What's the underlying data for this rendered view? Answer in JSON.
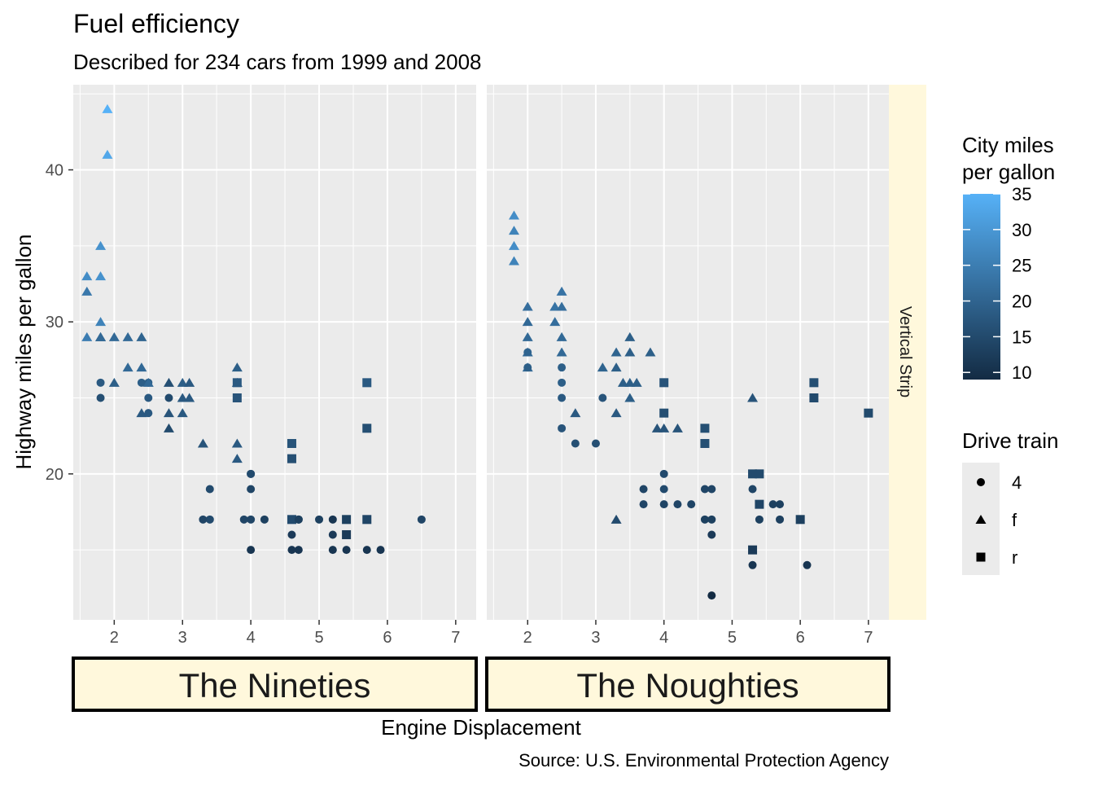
{
  "chart_data": {
    "type": "scatter",
    "title": "Fuel efficiency",
    "subtitle": "Described for 234 cars from 1999 and 2008",
    "xlabel": "Engine Displacement",
    "ylabel": "Highway miles per gallon",
    "caption": "Source: U.S. Environmental Protection Agency",
    "strip_right": "Vertical Strip",
    "xlim": [
      1.4,
      7.3
    ],
    "ylim": [
      10.4,
      45.6
    ],
    "x_ticks": [
      2,
      3,
      4,
      5,
      6,
      7
    ],
    "y_ticks": [
      20,
      30,
      40
    ],
    "grid": true,
    "color_legend": {
      "title_lines": [
        "City miles",
        "per gallon"
      ],
      "range": [
        9,
        35
      ],
      "ticks": [
        10,
        15,
        20,
        25,
        30,
        35
      ],
      "low_color": "#132B43",
      "high_color": "#56B1F7"
    },
    "shape_legend": {
      "title": "Drive train",
      "items": [
        {
          "key": "4",
          "shape": "circle"
        },
        {
          "key": "f",
          "shape": "triangle"
        },
        {
          "key": "r",
          "shape": "square"
        }
      ]
    },
    "panels": [
      {
        "label": "The Nineties",
        "points": [
          [
            1.8,
            29,
            "f",
            18
          ],
          [
            1.8,
            29,
            "f",
            21
          ],
          [
            2.8,
            26,
            "f",
            16
          ],
          [
            1.8,
            26,
            "4",
            18
          ],
          [
            1.8,
            25,
            "4",
            16
          ],
          [
            2.8,
            25,
            "4",
            15
          ],
          [
            3.1,
            25,
            "f",
            18
          ],
          [
            2.8,
            23,
            "f",
            15
          ],
          [
            2.8,
            24,
            "f",
            17
          ],
          [
            4.0,
            20,
            "4",
            15
          ],
          [
            4.0,
            17,
            "4",
            14
          ],
          [
            3.8,
            22,
            "f",
            18
          ],
          [
            3.8,
            21,
            "f",
            18
          ],
          [
            3.8,
            26,
            "f",
            18
          ],
          [
            3.8,
            27,
            "f",
            19
          ],
          [
            1.6,
            33,
            "f",
            28
          ],
          [
            1.6,
            32,
            "f",
            24
          ],
          [
            1.6,
            29,
            "f",
            25
          ],
          [
            1.8,
            33,
            "f",
            29
          ],
          [
            1.8,
            35,
            "f",
            29
          ],
          [
            1.8,
            30,
            "f",
            26
          ],
          [
            1.9,
            44,
            "f",
            35
          ],
          [
            1.9,
            41,
            "f",
            33
          ],
          [
            2.0,
            29,
            "f",
            21
          ],
          [
            2.0,
            26,
            "f",
            19
          ],
          [
            2.2,
            27,
            "f",
            21
          ],
          [
            2.2,
            29,
            "f",
            21
          ],
          [
            2.4,
            27,
            "f",
            21
          ],
          [
            2.4,
            24,
            "f",
            18
          ],
          [
            2.4,
            29,
            "f",
            20
          ],
          [
            2.4,
            26,
            "4",
            19
          ],
          [
            2.5,
            26,
            "4",
            19
          ],
          [
            2.5,
            25,
            "4",
            18
          ],
          [
            2.5,
            24,
            "4",
            18
          ],
          [
            2.5,
            26,
            "f",
            21
          ],
          [
            3.0,
            26,
            "f",
            19
          ],
          [
            3.0,
            25,
            "f",
            18
          ],
          [
            3.0,
            24,
            "f",
            18
          ],
          [
            3.3,
            22,
            "f",
            17
          ],
          [
            3.4,
            19,
            "4",
            15
          ],
          [
            3.4,
            17,
            "4",
            15
          ],
          [
            3.3,
            17,
            "4",
            14
          ],
          [
            3.9,
            17,
            "4",
            14
          ],
          [
            4.0,
            19,
            "4",
            14
          ],
          [
            4.0,
            15,
            "4",
            11
          ],
          [
            4.7,
            17,
            "4",
            13
          ],
          [
            4.7,
            15,
            "4",
            11
          ],
          [
            5.2,
            17,
            "4",
            11
          ],
          [
            5.2,
            15,
            "4",
            11
          ],
          [
            5.2,
            16,
            "4",
            12
          ],
          [
            5.9,
            15,
            "4",
            11
          ],
          [
            4.6,
            16,
            "4",
            12
          ],
          [
            4.6,
            15,
            "4",
            11
          ],
          [
            5.0,
            17,
            "4",
            13
          ],
          [
            5.4,
            17,
            "4",
            13
          ],
          [
            5.4,
            15,
            "4",
            11
          ],
          [
            5.7,
            15,
            "4",
            11
          ],
          [
            6.5,
            17,
            "4",
            14
          ],
          [
            4.2,
            17,
            "4",
            13
          ],
          [
            4.6,
            17,
            "r",
            15
          ],
          [
            4.6,
            22,
            "r",
            17
          ],
          [
            4.6,
            21,
            "r",
            16
          ],
          [
            5.4,
            17,
            "r",
            13
          ],
          [
            5.4,
            16,
            "r",
            12
          ],
          [
            5.7,
            17,
            "r",
            14
          ],
          [
            5.7,
            26,
            "r",
            18
          ],
          [
            5.7,
            23,
            "r",
            16
          ],
          [
            3.8,
            26,
            "r",
            18
          ],
          [
            3.8,
            25,
            "r",
            17
          ],
          [
            4.7,
            17,
            "4",
            13
          ],
          [
            4.0,
            20,
            "4",
            15
          ],
          [
            3.1,
            26,
            "f",
            18
          ]
        ]
      },
      {
        "label": "The Noughties",
        "points": [
          [
            1.8,
            37,
            "f",
            28
          ],
          [
            1.8,
            36,
            "f",
            26
          ],
          [
            1.8,
            35,
            "f",
            28
          ],
          [
            1.8,
            34,
            "f",
            26
          ],
          [
            2.0,
            31,
            "f",
            22
          ],
          [
            2.0,
            30,
            "f",
            21
          ],
          [
            2.0,
            29,
            "f",
            21
          ],
          [
            2.0,
            28,
            "f",
            21
          ],
          [
            2.0,
            27,
            "f",
            21
          ],
          [
            2.0,
            28,
            "4",
            20
          ],
          [
            2.0,
            27,
            "4",
            19
          ],
          [
            2.4,
            31,
            "f",
            23
          ],
          [
            2.4,
            30,
            "f",
            22
          ],
          [
            2.5,
            32,
            "f",
            23
          ],
          [
            2.5,
            31,
            "f",
            22
          ],
          [
            2.5,
            29,
            "f",
            21
          ],
          [
            2.5,
            28,
            "f",
            21
          ],
          [
            2.5,
            27,
            "4",
            19
          ],
          [
            2.5,
            26,
            "4",
            19
          ],
          [
            2.5,
            25,
            "4",
            18
          ],
          [
            2.5,
            23,
            "4",
            17
          ],
          [
            2.7,
            24,
            "f",
            18
          ],
          [
            2.7,
            22,
            "4",
            16
          ],
          [
            3.0,
            22,
            "4",
            16
          ],
          [
            3.1,
            25,
            "4",
            17
          ],
          [
            3.1,
            27,
            "f",
            20
          ],
          [
            3.3,
            28,
            "f",
            20
          ],
          [
            3.3,
            27,
            "f",
            19
          ],
          [
            3.3,
            24,
            "f",
            18
          ],
          [
            3.3,
            17,
            "f",
            15
          ],
          [
            3.4,
            26,
            "f",
            19
          ],
          [
            3.5,
            29,
            "f",
            19
          ],
          [
            3.5,
            28,
            "f",
            19
          ],
          [
            3.5,
            26,
            "f",
            19
          ],
          [
            3.5,
            25,
            "f",
            19
          ],
          [
            3.6,
            26,
            "f",
            19
          ],
          [
            3.7,
            19,
            "4",
            14
          ],
          [
            3.7,
            18,
            "4",
            14
          ],
          [
            3.8,
            28,
            "f",
            19
          ],
          [
            3.9,
            23,
            "f",
            17
          ],
          [
            4.0,
            23,
            "f",
            17
          ],
          [
            4.0,
            26,
            "r",
            17
          ],
          [
            4.0,
            24,
            "r",
            16
          ],
          [
            4.0,
            20,
            "4",
            15
          ],
          [
            4.0,
            19,
            "4",
            15
          ],
          [
            4.0,
            18,
            "4",
            14
          ],
          [
            4.2,
            23,
            "f",
            17
          ],
          [
            4.2,
            18,
            "4",
            14
          ],
          [
            4.4,
            18,
            "4",
            14
          ],
          [
            4.6,
            23,
            "r",
            16
          ],
          [
            4.6,
            22,
            "r",
            16
          ],
          [
            4.6,
            19,
            "4",
            14
          ],
          [
            4.6,
            17,
            "4",
            13
          ],
          [
            4.7,
            19,
            "4",
            14
          ],
          [
            4.7,
            17,
            "4",
            13
          ],
          [
            4.7,
            16,
            "4",
            12
          ],
          [
            4.7,
            12,
            "4",
            9
          ],
          [
            5.3,
            25,
            "f",
            17
          ],
          [
            5.3,
            19,
            "4",
            14
          ],
          [
            5.3,
            14,
            "4",
            11
          ],
          [
            5.3,
            20,
            "r",
            15
          ],
          [
            5.3,
            15,
            "r",
            12
          ],
          [
            5.4,
            20,
            "r",
            15
          ],
          [
            5.4,
            18,
            "r",
            14
          ],
          [
            5.4,
            17,
            "4",
            13
          ],
          [
            5.6,
            18,
            "4",
            13
          ],
          [
            5.7,
            18,
            "4",
            13
          ],
          [
            5.7,
            17,
            "4",
            13
          ],
          [
            6.0,
            17,
            "r",
            13
          ],
          [
            6.1,
            14,
            "4",
            11
          ],
          [
            6.2,
            26,
            "r",
            16
          ],
          [
            6.2,
            25,
            "r",
            15
          ],
          [
            7.0,
            24,
            "r",
            15
          ]
        ]
      }
    ]
  }
}
